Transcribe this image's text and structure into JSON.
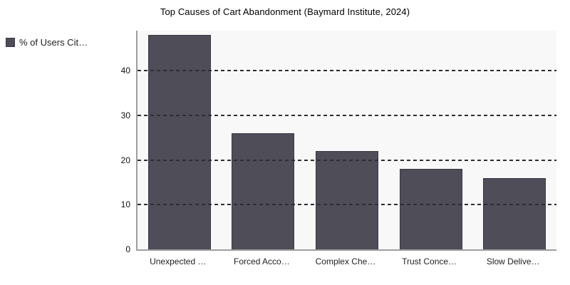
{
  "chart_data": {
    "type": "bar",
    "title": "Top Causes of Cart Abandonment (Baymard Institute, 2024)",
    "categories": [
      "Unexpected …",
      "Forced Acco…",
      "Complex Che…",
      "Trust Conce…",
      "Slow Delive…"
    ],
    "series": [
      {
        "name": "% of Users Cit…",
        "values": [
          48,
          26,
          22,
          18,
          16
        ]
      }
    ],
    "xlabel": "",
    "ylabel": "",
    "yticks": [
      0,
      10,
      20,
      30,
      40
    ],
    "ylim": [
      0,
      49
    ],
    "grid": "horizontal-dashed",
    "grid_over_bars": true,
    "legend_position": "top-left",
    "colors": {
      "bar_fill": "#4f4d58",
      "bar_border": "#3a3842",
      "plot_background": "#f8f8f8",
      "axis_line": "#9e9e9e",
      "gridline": "#2e2c35",
      "title_text": "#000000",
      "tick_text": "#111111"
    }
  }
}
